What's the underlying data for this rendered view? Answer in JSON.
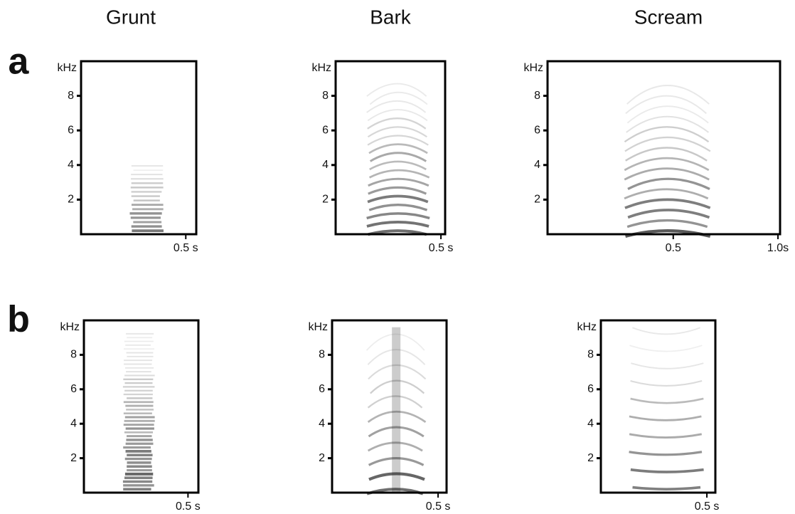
{
  "columns": [
    "Grunt",
    "Bark",
    "Scream"
  ],
  "rows": [
    "a",
    "b"
  ],
  "chart_data": [
    {
      "type": "spectrogram",
      "ylabel": "kHz",
      "ylim": [
        0,
        10
      ],
      "yticks": [
        2,
        4,
        6,
        8
      ],
      "xlim": [
        0,
        0.55
      ],
      "xticks": [
        {
          "value": 0.5,
          "label": "0.5 s"
        }
      ]
    },
    {
      "type": "spectrogram",
      "ylabel": "kHz",
      "ylim": [
        0,
        10
      ],
      "yticks": [
        2,
        4,
        6,
        8
      ],
      "xlim": [
        0,
        0.52
      ],
      "xticks": [
        {
          "value": 0.5,
          "label": "0.5 s"
        }
      ]
    },
    {
      "type": "spectrogram",
      "ylabel": "kHz",
      "ylim": [
        0,
        10
      ],
      "yticks": [
        2,
        4,
        6,
        8
      ],
      "xlim": [
        -0.1,
        1.01
      ],
      "xticks": [
        {
          "value": 0.5,
          "label": "0.5"
        },
        {
          "value": 1.0,
          "label": "1.0s"
        }
      ]
    },
    {
      "type": "spectrogram",
      "ylabel": "kHz",
      "ylim": [
        0,
        10
      ],
      "yticks": [
        2,
        4,
        6,
        8
      ],
      "xlim": [
        0,
        0.55
      ],
      "xticks": [
        {
          "value": 0.5,
          "label": "0.5 s"
        }
      ]
    },
    {
      "type": "spectrogram",
      "ylabel": "kHz",
      "ylim": [
        0,
        10
      ],
      "yticks": [
        2,
        4,
        6,
        8
      ],
      "xlim": [
        0,
        0.54
      ],
      "xticks": [
        {
          "value": 0.5,
          "label": "0.5 s"
        }
      ]
    },
    {
      "type": "spectrogram",
      "ylabel": "kHz",
      "ylim": [
        0,
        10
      ],
      "yticks": [
        2,
        4,
        6,
        8
      ],
      "xlim": [
        0,
        0.54
      ],
      "xticks": [
        {
          "value": 0.5,
          "label": "0.5 s"
        }
      ]
    }
  ]
}
